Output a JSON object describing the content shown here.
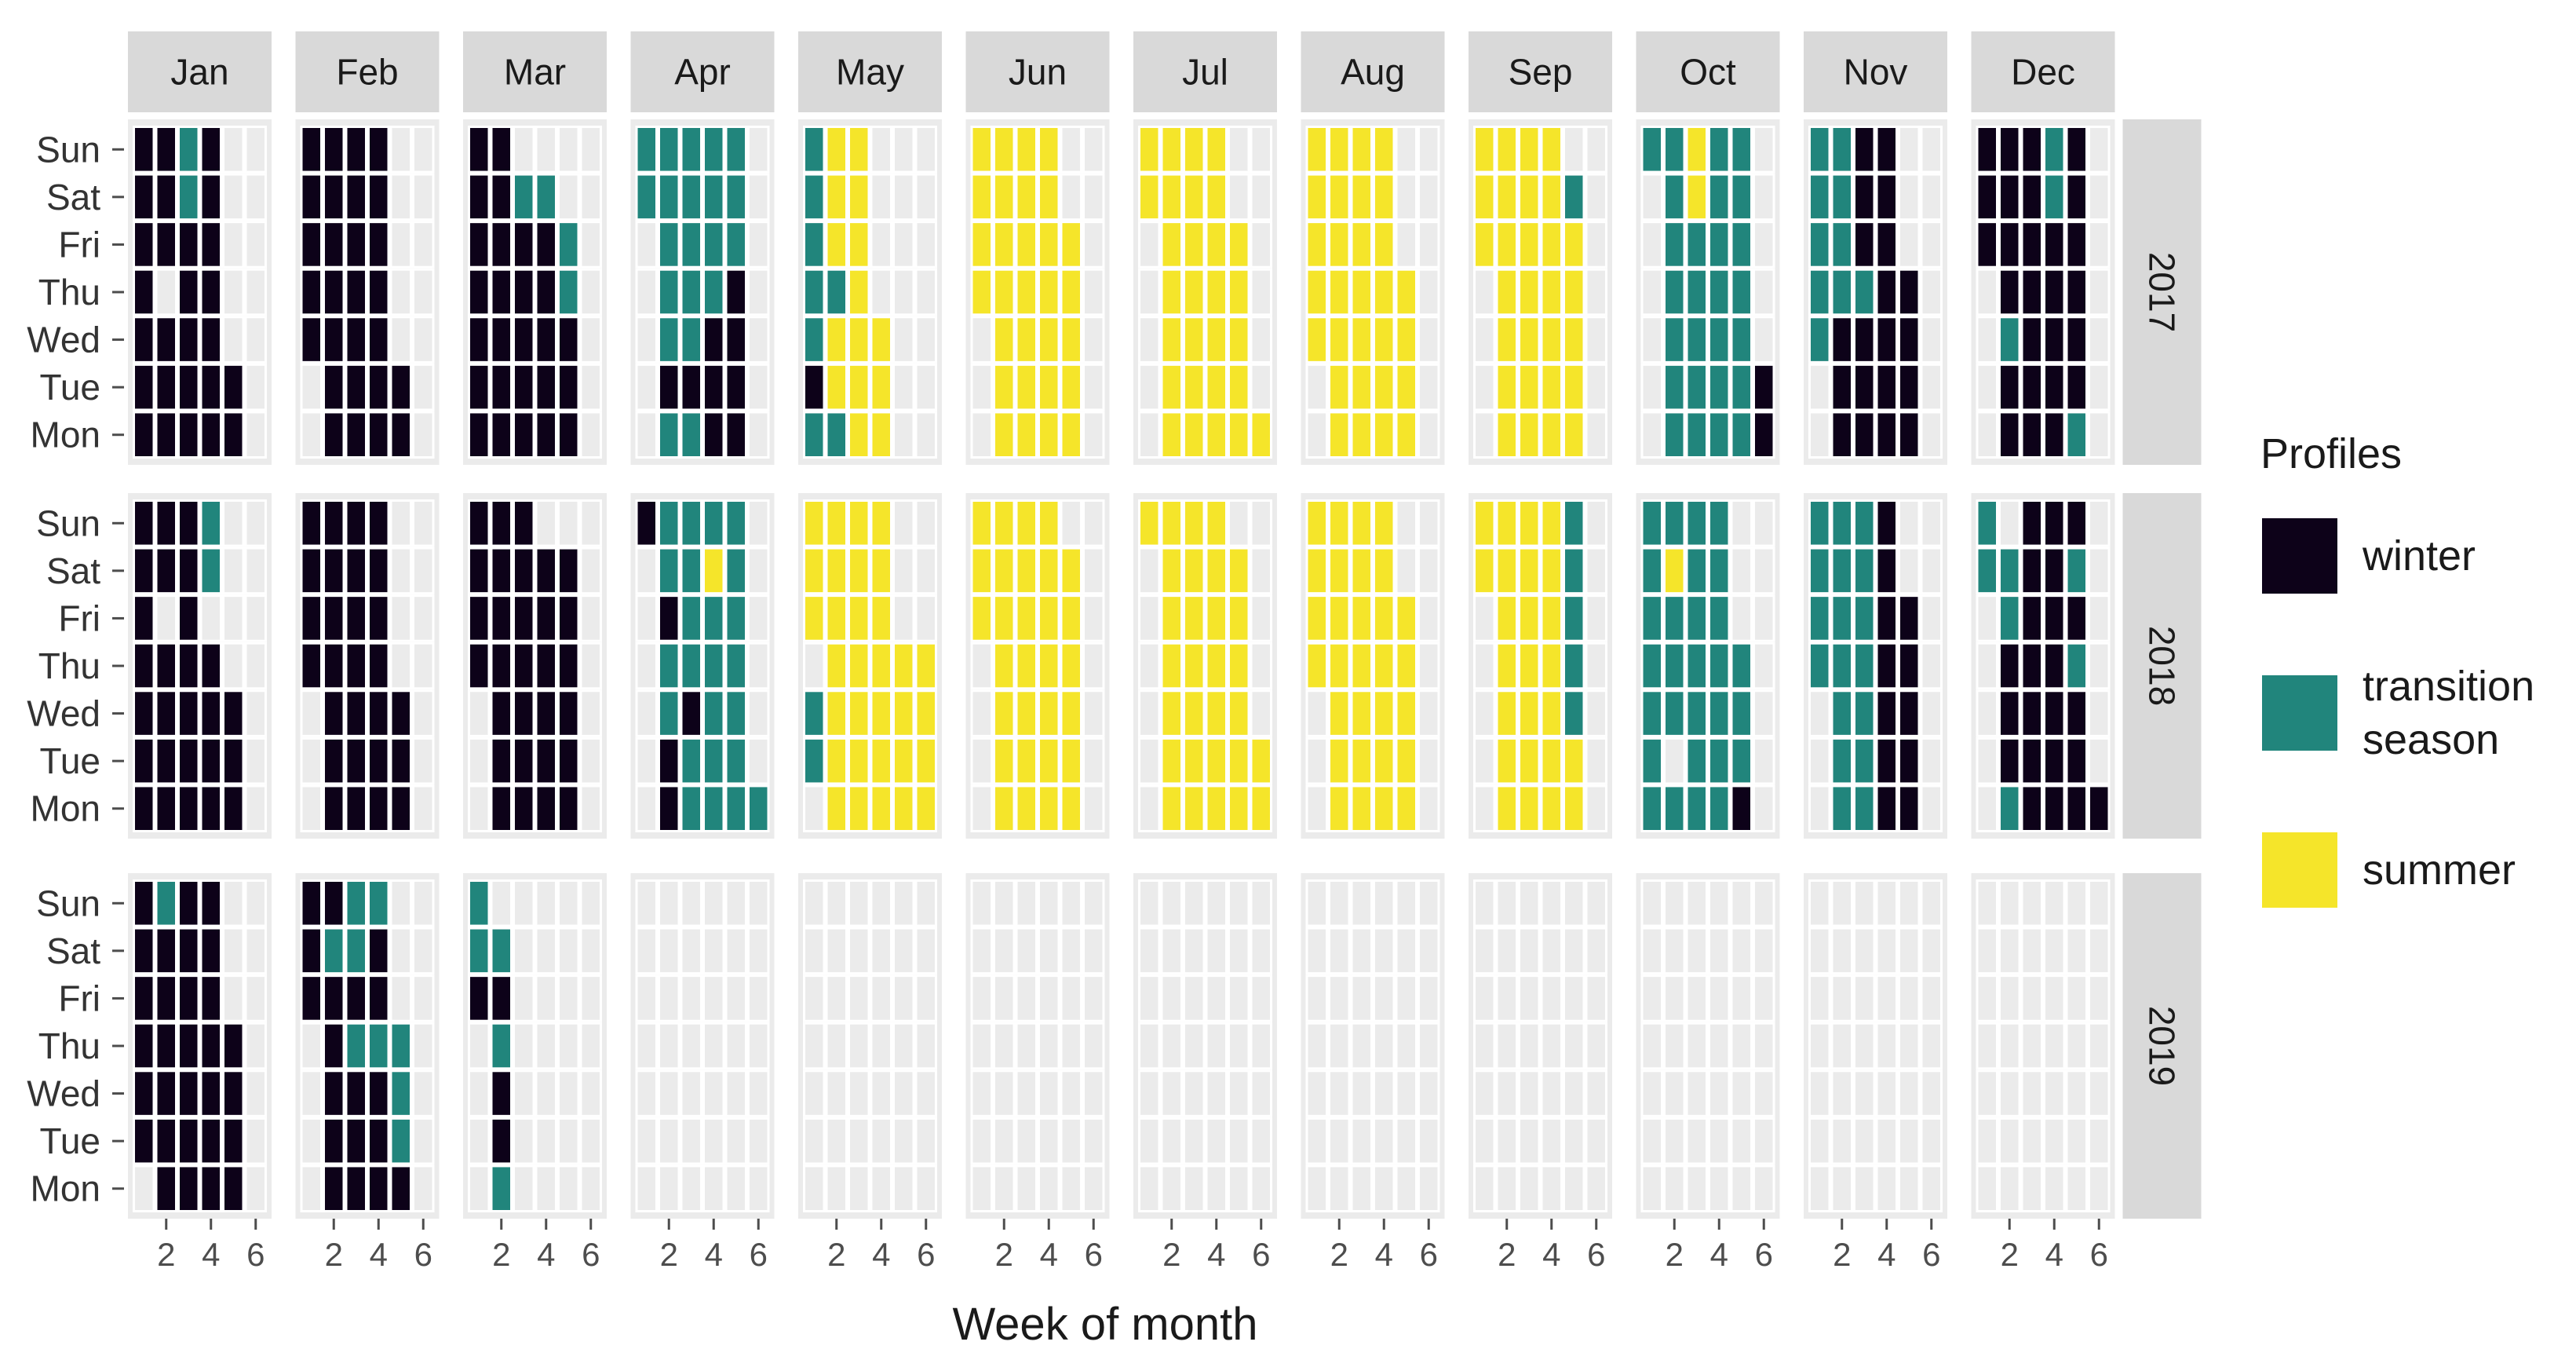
{
  "chart_data": {
    "type": "heatmap",
    "title": "",
    "xlabel": "Week of month",
    "ylabel": "",
    "x_ticks": [
      2,
      4,
      6
    ],
    "xlim": [
      0.5,
      6.5
    ],
    "months": [
      "Jan",
      "Feb",
      "Mar",
      "Apr",
      "May",
      "Jun",
      "Jul",
      "Aug",
      "Sep",
      "Oct",
      "Nov",
      "Dec"
    ],
    "days": [
      "Sun",
      "Sat",
      "Fri",
      "Thu",
      "Wed",
      "Tue",
      "Mon"
    ],
    "years": [
      "2017",
      "2018",
      "2019"
    ],
    "legend": {
      "title": "Profiles",
      "placement": "right",
      "entries": [
        {
          "key": "W",
          "label": "winter",
          "color": "#0d0219"
        },
        {
          "key": "T",
          "label": "transition season",
          "label_lines": [
            "transition",
            "season"
          ],
          "color": "#21857c"
        },
        {
          "key": "S",
          "label": "summer",
          "color": "#f5e52a"
        }
      ]
    },
    "empty_cell_note": "'.' = no data for that weekday/week; rows listed Sun..Mon, string index = week of month 1..6",
    "grid": {
      "2017": {
        "Jan": [
          "WWTW..",
          "WWTW..",
          "WWWW..",
          "W.WW..",
          "WWWW..",
          "WWWWW.",
          "WWWWW."
        ],
        "Feb": [
          "WWWW..",
          "WWWW..",
          "WWWW..",
          "WWWW..",
          "WWWW..",
          ".WWWW.",
          ".WWWW."
        ],
        "Mar": [
          "WW....",
          "WWTT..",
          "WWWWT.",
          "WWWWT.",
          "WWWWW.",
          "WWWWW.",
          "WWWWW."
        ],
        "Apr": [
          "TTTTT.",
          "TTTTT.",
          ".TTTT.",
          ".TTTW.",
          ".TTWW.",
          ".WWWW.",
          ".TTWW."
        ],
        "May": [
          "TSS...",
          "TSS...",
          "TSS...",
          "TTS...",
          "TSSS..",
          "WSSS..",
          "TTSS.."
        ],
        "Jun": [
          "SSSS..",
          "SSSS..",
          "SSSSS.",
          "SSSSS.",
          ".SSSS.",
          ".SSSS.",
          ".SSSS."
        ],
        "Jul": [
          "SSSS..",
          "SSSS..",
          ".SSSS.",
          ".SSSS.",
          ".SSSS.",
          ".SSSS.",
          ".SSSSS"
        ],
        "Aug": [
          "SSSS..",
          "SSSS..",
          "SSSS..",
          "SSSSS.",
          "SSSSS.",
          ".SSSS.",
          ".SSSS."
        ],
        "Sep": [
          "SSSS..",
          "SSSST.",
          "SSSSS.",
          ".SSSS.",
          ".SSSS.",
          ".SSSS.",
          ".SSSS."
        ],
        "Oct": [
          "TTSTT.",
          ".TSTT.",
          ".TTTT.",
          ".TTTT.",
          ".TTTT.",
          ".TTTTW",
          ".TTTTW"
        ],
        "Nov": [
          "TTWW..",
          "TTWW..",
          "TTWW..",
          "TTTWW.",
          "TWWWW.",
          ".WWWW.",
          ".WWWW."
        ],
        "Dec": [
          "WWWTW.",
          "WWWTW.",
          "WWWWW.",
          ".WWWW.",
          ".TWWW.",
          ".WWWW.",
          ".WWWT."
        ]
      },
      "2018": {
        "Jan": [
          "WWWT..",
          "WWWT..",
          "W.W...",
          "WWWW..",
          "WWWWW.",
          "WWWWW.",
          "WWWWW."
        ],
        "Feb": [
          "WWWW..",
          "WWWW..",
          "WWWW..",
          "WWWW..",
          ".WWWW.",
          ".WWWW.",
          ".WWWW."
        ],
        "Mar": [
          "WWW...",
          "WWWWW.",
          "WWWWW.",
          "WWWWW.",
          ".WWWW.",
          ".WWWW.",
          ".WWWW."
        ],
        "Apr": [
          "WTTTT.",
          ".TTST.",
          ".WTTT.",
          ".TTTT.",
          ".TWTT.",
          ".WTTT.",
          ".WTTTT"
        ],
        "May": [
          "SSSS..",
          "SSSS..",
          "SSSS..",
          ".SSSSS",
          "TSSSSS",
          "TSSSSS",
          ".SSSSS"
        ],
        "Jun": [
          "SSSS..",
          "SSSSS.",
          "SSSSS.",
          ".SSSS.",
          ".SSSS.",
          ".SSSS.",
          ".SSSS."
        ],
        "Jul": [
          "SSSS..",
          ".SSSS.",
          ".SSSS.",
          ".SSSS.",
          ".SSSS.",
          ".SSSSS",
          ".SSSSS"
        ],
        "Aug": [
          "SSSS..",
          "SSSS..",
          "SSSSS.",
          "SSSSS.",
          ".SSSS.",
          ".SSSS.",
          ".SSSS."
        ],
        "Sep": [
          "SSSST.",
          "SSSST.",
          ".SSST.",
          ".SSST.",
          ".SSST.",
          ".SSSS.",
          ".SSSS."
        ],
        "Oct": [
          "TTTT..",
          "TSTT..",
          "TTTT..",
          "TTTTT.",
          "TTTTT.",
          "T.TTT.",
          "TTTTW."
        ],
        "Nov": [
          "TTTW..",
          "TTTW..",
          "TTTWW.",
          "TTTWW.",
          ".TTWW.",
          ".TTWW.",
          ".TTWW."
        ],
        "Dec": [
          "T.WWW.",
          "TTWWT.",
          ".TWWW.",
          ".WWWT.",
          ".WWWW.",
          ".WWWW.",
          ".TWWWW"
        ]
      },
      "2019": {
        "Jan": [
          "WTWW..",
          "WWWW..",
          "WWWW..",
          "WWWWW.",
          "WWWWW.",
          "WWWWW.",
          ".WWWW."
        ],
        "Feb": [
          "WWTT..",
          "WTTW..",
          "WWWW..",
          ".WTTT.",
          ".WWWT.",
          ".WWWT.",
          ".WWWW."
        ],
        "Mar": [
          "T.....",
          "TT....",
          "WW....",
          ".T....",
          ".W....",
          ".W....",
          ".T...."
        ],
        "Apr": [
          "......",
          "......",
          "......",
          "......",
          "......",
          "......",
          "......"
        ],
        "May": [
          "......",
          "......",
          "......",
          "......",
          "......",
          "......",
          "......"
        ],
        "Jun": [
          "......",
          "......",
          "......",
          "......",
          "......",
          "......",
          "......"
        ],
        "Jul": [
          "......",
          "......",
          "......",
          "......",
          "......",
          "......",
          "......"
        ],
        "Aug": [
          "......",
          "......",
          "......",
          "......",
          "......",
          "......",
          "......"
        ],
        "Sep": [
          "......",
          "......",
          "......",
          "......",
          "......",
          "......",
          "......"
        ],
        "Oct": [
          "......",
          "......",
          "......",
          "......",
          "......",
          "......",
          "......"
        ],
        "Nov": [
          "......",
          "......",
          "......",
          "......",
          "......",
          "......",
          "......"
        ],
        "Dec": [
          "......",
          "......",
          "......",
          "......",
          "......",
          "......",
          "......"
        ]
      }
    }
  }
}
